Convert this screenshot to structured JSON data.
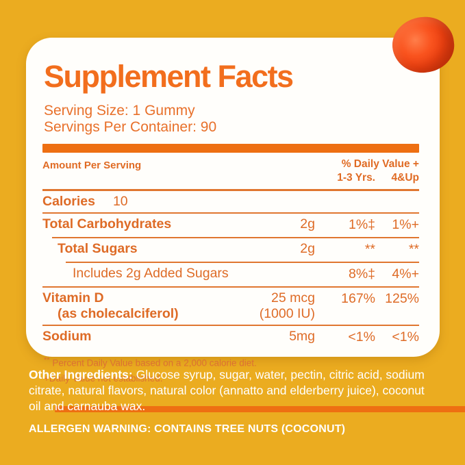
{
  "colors": {
    "background_gold": "#EBAC20",
    "card_white": "#FFFEFB",
    "brand_orange": "#F26E1D",
    "text_orange": "#DE6B26",
    "bar_orange": "#EE6F12",
    "bottom_text_white": "#FFFFFF",
    "gummy_red_orange": "#EF4312"
  },
  "title": "Supplement Facts",
  "serving": {
    "line1": "Serving Size: 1 Gummy",
    "line2": "Servings Per Container: 90"
  },
  "table": {
    "amount_header": "Amount Per Serving",
    "dv_header": "% Daily Value +",
    "col1_header": "1-3 Yrs.",
    "col2_header": "4&Up",
    "calories": {
      "name": "Calories",
      "value": "10"
    },
    "rows": [
      {
        "name": "Total Carbohydrates",
        "amount": "2g",
        "dv1": "1%‡",
        "dv2": "1%+"
      },
      {
        "name": "Total Sugars",
        "amount": "2g",
        "dv1": "**",
        "dv2": "**"
      },
      {
        "name": "Includes 2g Added Sugars",
        "amount": "",
        "dv1": "8%‡",
        "dv2": "4%+"
      },
      {
        "name": "Vitamin D",
        "name_sub": "(as cholecalciferol)",
        "amount": "25 mcg",
        "amount_sub": "(1000 IU)",
        "dv1": "167%",
        "dv2": "125%"
      },
      {
        "name": "Sodium",
        "amount": "5mg",
        "dv1": "<1%",
        "dv2": "<1%"
      }
    ]
  },
  "footnotes": [
    {
      "marker": "**",
      "text": "Percent Daily Value based on a 2,000 calorie diet."
    },
    {
      "marker": "+",
      "text": "Daily Value not established."
    }
  ],
  "other_ingredients": {
    "label": "Other Ingredients:",
    "text": "Glucose syrup, sugar, water, pectin, citric acid, sodium citrate, natural flavors, natural color (annatto and elderberry juice), coconut oil and carnauba wax."
  },
  "allergen_warning": "ALLERGEN WARNING: CONTAINS TREE NUTS (COCONUT)"
}
